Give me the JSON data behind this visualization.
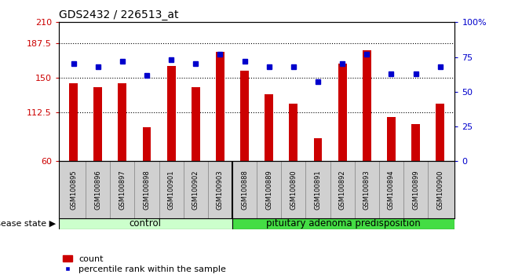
{
  "title": "GDS2432 / 226513_at",
  "samples": [
    "GSM100895",
    "GSM100896",
    "GSM100897",
    "GSM100898",
    "GSM100901",
    "GSM100902",
    "GSM100903",
    "GSM100888",
    "GSM100889",
    "GSM100890",
    "GSM100891",
    "GSM100892",
    "GSM100893",
    "GSM100894",
    "GSM100899",
    "GSM100900"
  ],
  "bar_values": [
    144,
    140,
    144,
    97,
    163,
    140,
    178,
    158,
    132,
    122,
    85,
    165,
    180,
    108,
    100,
    122
  ],
  "percentile_values": [
    70,
    68,
    72,
    62,
    73,
    70,
    77,
    72,
    68,
    68,
    57,
    70,
    77,
    63,
    63,
    68
  ],
  "bar_color": "#cc0000",
  "dot_color": "#0000cc",
  "ylim_left": [
    60,
    210
  ],
  "ylim_right": [
    0,
    100
  ],
  "yticks_left": [
    60,
    112.5,
    150,
    187.5,
    210
  ],
  "yticks_right": [
    0,
    25,
    50,
    75,
    100
  ],
  "hlines": [
    187.5,
    150,
    112.5
  ],
  "control_samples": 7,
  "control_label": "control",
  "disease_label": "pituitary adenoma predisposition",
  "disease_state_label": "disease state",
  "legend_bar_label": "count",
  "legend_dot_label": "percentile rank within the sample",
  "bg_color": "#ffffff",
  "plot_bg": "#ffffff",
  "control_bg": "#ccffcc",
  "disease_bg": "#44dd44",
  "label_bg": "#d0d0d0",
  "bar_width": 0.35
}
